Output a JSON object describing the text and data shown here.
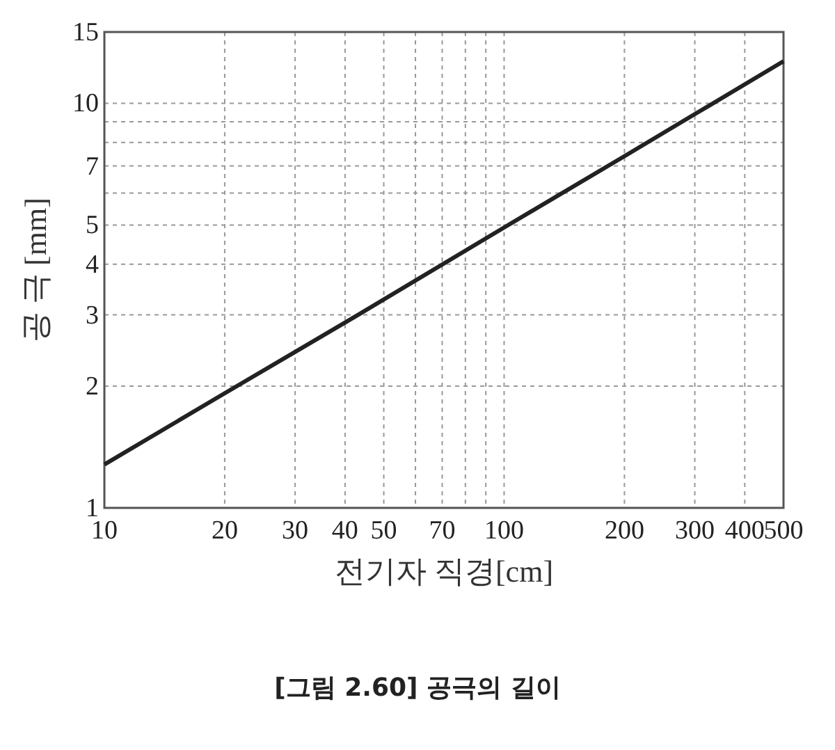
{
  "chart_data": {
    "type": "line",
    "xlabel": "전기자 직경[cm]",
    "ylabel": "공 극 [mm]",
    "annotations": [
      "[그림 2.60] 공극의 길이"
    ],
    "log": "xy",
    "grid": true,
    "marker": "none",
    "line_style": "solid",
    "xlim": [
      10,
      500
    ],
    "ylim": [
      1,
      15
    ],
    "xticks": [
      10,
      20,
      30,
      40,
      50,
      {
        "value": 60,
        "label": null
      },
      70,
      {
        "value": 80,
        "label": null
      },
      {
        "value": 90,
        "label": null
      },
      100,
      200,
      300,
      400,
      500
    ],
    "yticks": [
      1,
      2,
      3,
      4,
      5,
      {
        "value": 6,
        "label": null
      },
      7,
      {
        "value": 8,
        "label": null
      },
      {
        "value": 9,
        "label": null
      },
      10,
      15
    ],
    "x": [
      10,
      20,
      40,
      100,
      200,
      300,
      500
    ],
    "series": [
      {
        "color": "#222222",
        "values": [
          1.28,
          1.92,
          2.87,
          4.93,
          7.4,
          9.4,
          12.7
        ]
      }
    ]
  }
}
